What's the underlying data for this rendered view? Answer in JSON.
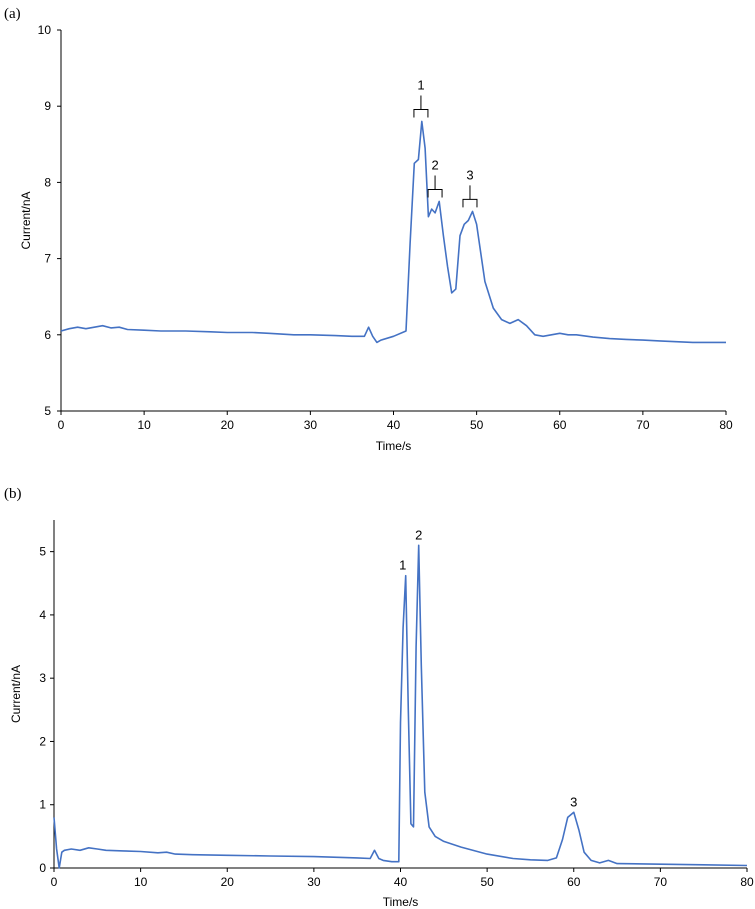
{
  "chart_data": [
    {
      "panel_label": "(a)",
      "type": "line",
      "xlabel": "Time/s",
      "ylabel": "Current/nA",
      "xlim": [
        0,
        80
      ],
      "ylim": [
        5,
        10
      ],
      "xticks": [
        0,
        10,
        20,
        30,
        40,
        50,
        60,
        70,
        80
      ],
      "yticks": [
        5,
        6,
        7,
        8,
        9,
        10
      ],
      "grid": false,
      "series": [
        {
          "color": "#4472C4",
          "x": [
            0,
            1,
            2,
            3,
            4,
            5,
            6,
            7,
            8,
            10,
            12,
            15,
            18,
            20,
            23,
            25,
            28,
            30,
            33,
            35,
            36.5,
            37,
            37.5,
            38,
            38.5,
            40,
            41.5,
            42,
            42.5,
            43,
            43.4,
            43.8,
            44.2,
            44.6,
            45,
            45.5,
            46,
            46.5,
            47,
            47.5,
            48,
            48.5,
            49,
            49.5,
            50,
            51,
            52,
            53,
            54,
            55,
            56,
            57,
            58,
            59,
            60,
            61,
            62,
            64,
            66,
            68,
            70,
            72,
            74,
            76,
            78,
            80
          ],
          "values": [
            6.05,
            6.08,
            6.1,
            6.08,
            6.1,
            6.12,
            6.09,
            6.1,
            6.07,
            6.06,
            6.05,
            6.05,
            6.04,
            6.03,
            6.03,
            6.02,
            6.0,
            6.0,
            5.99,
            5.98,
            5.98,
            6.1,
            5.98,
            5.9,
            5.93,
            5.98,
            6.05,
            7.2,
            8.25,
            8.3,
            8.8,
            8.45,
            7.55,
            7.65,
            7.6,
            7.75,
            7.3,
            6.9,
            6.55,
            6.6,
            7.3,
            7.45,
            7.5,
            7.62,
            7.45,
            6.7,
            6.35,
            6.2,
            6.15,
            6.2,
            6.12,
            6.0,
            5.98,
            6.0,
            6.02,
            6.0,
            6.0,
            5.97,
            5.95,
            5.94,
            5.93,
            5.92,
            5.91,
            5.9,
            5.9,
            5.9
          ]
        }
      ],
      "annotations": [
        {
          "text": "1",
          "x": 43.3,
          "y": 8.8
        },
        {
          "text": "2",
          "x": 45.0,
          "y": 7.75
        },
        {
          "text": "3",
          "x": 49.2,
          "y": 7.62
        }
      ]
    },
    {
      "panel_label": "(b)",
      "type": "line",
      "xlabel": "Time/s",
      "ylabel": "Current/nA",
      "xlim": [
        0,
        80
      ],
      "ylim": [
        0,
        5.5
      ],
      "xticks": [
        0,
        10,
        20,
        30,
        40,
        50,
        60,
        70,
        80
      ],
      "yticks": [
        0,
        1,
        2,
        3,
        4,
        5
      ],
      "grid": false,
      "series": [
        {
          "color": "#4472C4",
          "x": [
            0,
            0.3,
            0.6,
            0.9,
            1.2,
            2,
            3,
            4,
            5,
            6,
            8,
            10,
            12,
            13,
            14,
            16,
            20,
            25,
            30,
            35,
            36.5,
            37,
            37.5,
            38,
            39,
            39.8,
            40,
            40.3,
            40.6,
            40.9,
            41.2,
            41.5,
            41.8,
            42.1,
            42.4,
            42.8,
            43.3,
            44,
            45,
            47,
            50,
            53,
            55,
            57,
            58,
            58.7,
            59.3,
            60,
            60.6,
            61.2,
            62,
            63,
            64,
            65,
            70,
            75,
            80
          ],
          "values": [
            0.8,
            0.3,
            0.0,
            0.25,
            0.28,
            0.3,
            0.28,
            0.32,
            0.3,
            0.28,
            0.27,
            0.26,
            0.24,
            0.25,
            0.22,
            0.21,
            0.2,
            0.19,
            0.18,
            0.16,
            0.15,
            0.28,
            0.15,
            0.12,
            0.1,
            0.1,
            2.3,
            3.8,
            4.62,
            2.5,
            0.7,
            0.65,
            3.5,
            5.1,
            3.2,
            1.2,
            0.65,
            0.5,
            0.42,
            0.33,
            0.22,
            0.15,
            0.13,
            0.12,
            0.16,
            0.45,
            0.8,
            0.88,
            0.6,
            0.25,
            0.12,
            0.08,
            0.12,
            0.07,
            0.06,
            0.05,
            0.04
          ]
        }
      ],
      "annotations": [
        {
          "text": "1",
          "x": 40.6,
          "y": 4.62
        },
        {
          "text": "2",
          "x": 42.1,
          "y": 5.1
        },
        {
          "text": "3",
          "x": 60.0,
          "y": 0.88
        }
      ]
    }
  ]
}
